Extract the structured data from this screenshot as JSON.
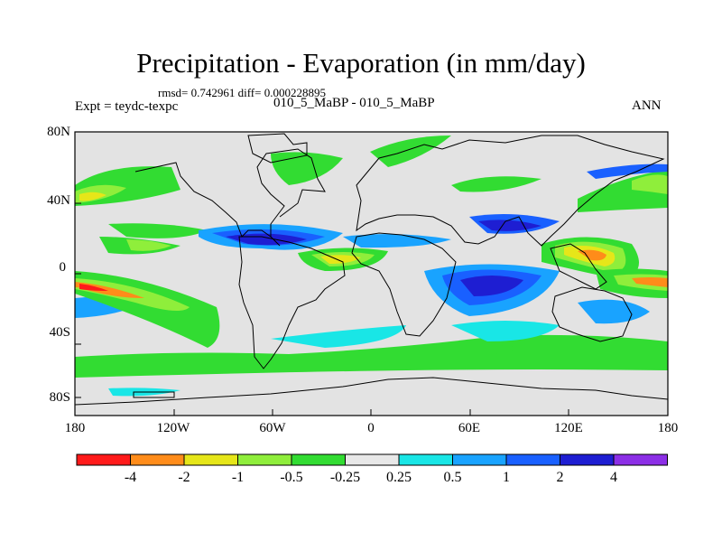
{
  "plot": {
    "title": "Precipitation - Evaporation (in mm/day)",
    "stats": "rmsd= 0.742961 diff= 0.000228895",
    "left_label": "Expt = teydc-texpc",
    "center_label": "010_5_MaBP - 010_5_MaBP",
    "right_label": "ANN"
  },
  "axes": {
    "lat_ticks": [
      "80N",
      "40N",
      "0",
      "40S",
      "80S"
    ],
    "lon_ticks": [
      "180",
      "120W",
      "60W",
      "0",
      "60E",
      "120E",
      "180"
    ]
  },
  "colorbar": {
    "colors": [
      "#ff1a1a",
      "#ff8c1a",
      "#e6e619",
      "#8fee3b",
      "#32dc32",
      "#e8e8e8",
      "#19e6e6",
      "#19a3ff",
      "#1960ff",
      "#1e1ed2",
      "#8c2fe6"
    ],
    "labels": [
      "-4",
      "-2",
      "-1",
      "-0.5",
      "-0.25",
      "0.25",
      "0.5",
      "1",
      "2",
      "4"
    ]
  },
  "colors": {
    "background_field": "#e3e3e3",
    "coastline": "#000000"
  }
}
